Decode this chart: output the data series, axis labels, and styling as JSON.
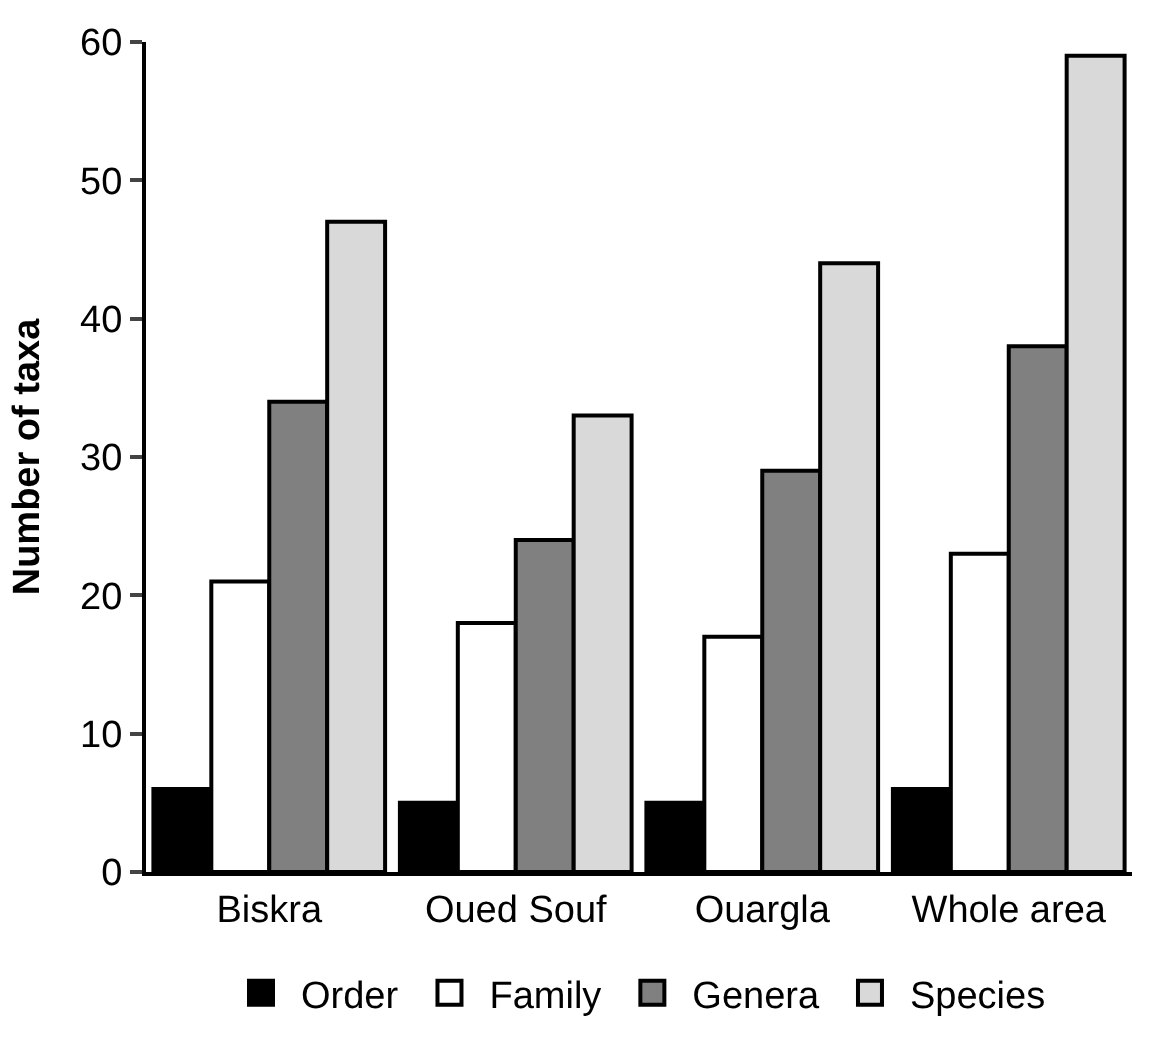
{
  "chart_data": {
    "type": "bar",
    "ylabel": "Number of taxa",
    "categories": [
      "Biskra",
      "Oued Souf",
      "Ouargla",
      "Whole area"
    ],
    "series": [
      {
        "name": "Order",
        "color": "#000000",
        "values": [
          6,
          5,
          5,
          6
        ]
      },
      {
        "name": "Family",
        "color": "#ffffff",
        "values": [
          21,
          18,
          17,
          23
        ]
      },
      {
        "name": "Genera",
        "color": "#808080",
        "values": [
          34,
          24,
          29,
          38
        ]
      },
      {
        "name": "Species",
        "color": "#d9d9d9",
        "values": [
          47,
          33,
          44,
          59
        ]
      }
    ],
    "ylim": [
      0,
      60
    ],
    "yticks": [
      0,
      10,
      20,
      30,
      40,
      50,
      60
    ],
    "legend": "bottom"
  }
}
